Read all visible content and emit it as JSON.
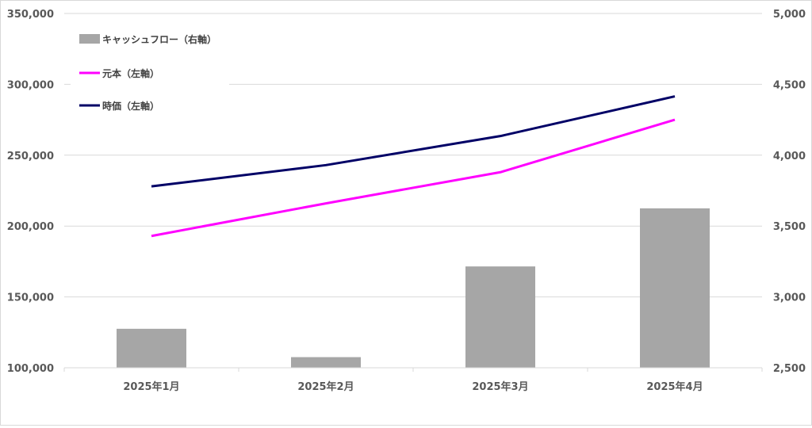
{
  "chart_data": {
    "type": "bar",
    "categories": [
      "2025年1月",
      "2025年2月",
      "2025年3月",
      "2025年4月"
    ],
    "series": [
      {
        "name": "キャッシュフロー（右軸）",
        "type": "bar",
        "axis": "right",
        "color": "#a6a6a6",
        "values": [
          2775,
          2575,
          3215,
          3625
        ]
      },
      {
        "name": "元本（左軸）",
        "type": "line",
        "axis": "left",
        "color": "#ff00ff",
        "values": [
          193000,
          216000,
          238000,
          275000
        ]
      },
      {
        "name": "時価（左軸）",
        "type": "line",
        "axis": "left",
        "color": "#000066",
        "values": [
          228000,
          243000,
          263500,
          291500
        ]
      }
    ],
    "y_left": {
      "min": 100000,
      "max": 350000,
      "step": 50000,
      "tick_labels": [
        "100,000",
        "150,000",
        "200,000",
        "250,000",
        "300,000",
        "350,000"
      ]
    },
    "y_right": {
      "min": 2500,
      "max": 5000,
      "step": 500,
      "tick_labels": [
        "2,500",
        "3,000",
        "3,500",
        "4,000",
        "4,500",
        "5,000"
      ]
    },
    "grid": true,
    "legend_position": "top-left"
  }
}
